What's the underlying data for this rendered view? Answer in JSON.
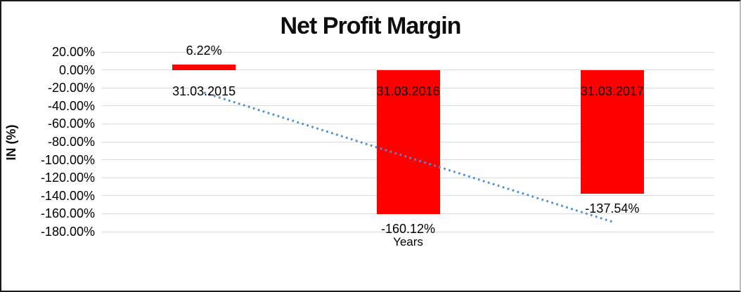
{
  "chart_data": {
    "type": "bar",
    "title": "Net Profit Margin",
    "xlabel": "Years",
    "ylabel": "IN (%)",
    "categories": [
      "31.03.2015",
      "31.03.2016",
      "31.03.2017"
    ],
    "values": [
      6.22,
      -160.12,
      -137.54
    ],
    "data_labels": [
      "6.22%",
      "-160.12%",
      "-137.54%"
    ],
    "ylim": [
      -180,
      20
    ],
    "ytick_step": 20,
    "ytick_labels": [
      "20.00%",
      "0.00%",
      "-20.00%",
      "-40.00%",
      "-60.00%",
      "-80.00%",
      "-100.00%",
      "-120.00%",
      "-140.00%",
      "-160.00%",
      "-180.00%"
    ],
    "grid": true,
    "legend": "none",
    "colors": {
      "bar": "#ff0000",
      "gridline": "#d9d9d9",
      "text": "#000000",
      "trendline": "#4e8fd0",
      "border": "#1a1a1a"
    },
    "trendline": {
      "type": "linear",
      "style": "dotted",
      "start_value": -25.3,
      "end_value": -169.0
    }
  }
}
